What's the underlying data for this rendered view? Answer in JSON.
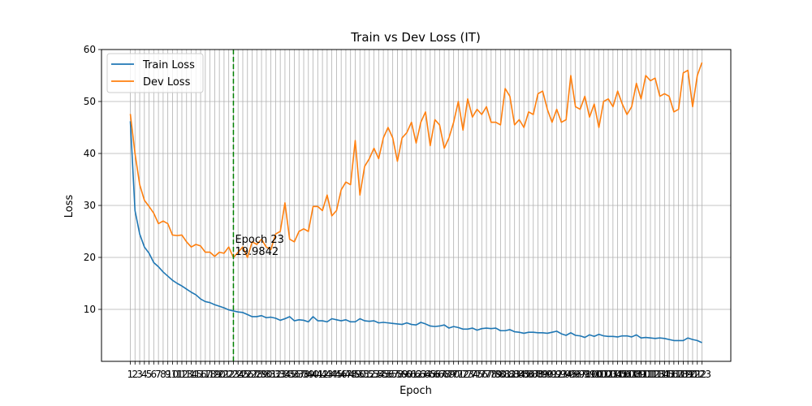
{
  "chart_data": {
    "type": "line",
    "title": "Train vs Dev Loss (IT)",
    "xlabel": "Epoch",
    "ylabel": "Loss",
    "xlim": [
      1,
      123
    ],
    "ylim": [
      0,
      60
    ],
    "y_ticks": [
      10,
      20,
      30,
      40,
      50,
      60
    ],
    "grid": true,
    "legend_position": "top-left",
    "annotation": {
      "line1": "Epoch 23",
      "line2": "19.9842",
      "x": 23,
      "y": 19.9842,
      "color": "#008000"
    },
    "series": [
      {
        "name": "Train Loss",
        "color": "#1f77b4",
        "values": [
          46.2,
          29.0,
          24.5,
          22.0,
          20.8,
          19.0,
          18.2,
          17.2,
          16.4,
          15.6,
          15.0,
          14.5,
          13.9,
          13.3,
          12.8,
          12.0,
          11.5,
          11.3,
          10.9,
          10.6,
          10.3,
          9.9,
          9.7,
          9.5,
          9.4,
          9.0,
          8.6,
          8.6,
          8.8,
          8.4,
          8.5,
          8.3,
          7.9,
          8.2,
          8.6,
          7.8,
          8.0,
          7.9,
          7.6,
          8.6,
          7.8,
          7.8,
          7.6,
          8.2,
          8.0,
          7.8,
          8.0,
          7.6,
          7.6,
          8.2,
          7.8,
          7.7,
          7.8,
          7.4,
          7.5,
          7.4,
          7.3,
          7.2,
          7.1,
          7.4,
          7.1,
          7.0,
          7.5,
          7.2,
          6.8,
          6.7,
          6.8,
          7.0,
          6.4,
          6.7,
          6.5,
          6.2,
          6.2,
          6.4,
          6.0,
          6.3,
          6.4,
          6.3,
          6.4,
          5.9,
          5.9,
          6.1,
          5.7,
          5.6,
          5.4,
          5.6,
          5.6,
          5.5,
          5.5,
          5.4,
          5.6,
          5.8,
          5.3,
          5.0,
          5.5,
          5.0,
          4.9,
          4.6,
          5.1,
          4.8,
          5.2,
          4.9,
          4.8,
          4.8,
          4.7,
          4.9,
          4.9,
          4.7,
          5.1,
          4.5,
          4.6,
          4.5,
          4.4,
          4.5,
          4.4,
          4.2,
          4.0,
          4.0,
          4.0,
          4.5,
          4.2,
          4.0,
          3.6
        ]
      },
      {
        "name": "Dev Loss",
        "color": "#ff7f0e",
        "values": [
          47.6,
          40.0,
          34.0,
          31.0,
          29.8,
          28.5,
          26.5,
          27.0,
          26.5,
          24.3,
          24.2,
          24.3,
          23.0,
          22.0,
          22.5,
          22.2,
          21.0,
          21.0,
          20.2,
          21.0,
          20.8,
          22.0,
          19.9842,
          21.0,
          22.0,
          20.0,
          23.0,
          22.5,
          23.5,
          22.0,
          21.5,
          24.5,
          25.0,
          30.5,
          23.5,
          23.0,
          25.0,
          25.5,
          25.0,
          29.8,
          29.8,
          29.0,
          32.0,
          28.0,
          29.0,
          33.0,
          34.5,
          34.0,
          42.5,
          32.0,
          37.5,
          39.0,
          41.0,
          39.0,
          43.0,
          45.0,
          43.0,
          38.5,
          43.0,
          44.0,
          46.0,
          42.0,
          46.0,
          48.0,
          41.5,
          46.5,
          45.5,
          41.0,
          43.0,
          46.0,
          50.0,
          44.5,
          50.5,
          47.0,
          48.5,
          47.5,
          49.0,
          46.0,
          46.0,
          45.5,
          52.5,
          51.0,
          45.5,
          46.5,
          45.0,
          48.0,
          47.5,
          51.5,
          52.0,
          48.5,
          46.0,
          48.5,
          46.0,
          46.5,
          55.0,
          49.0,
          48.5,
          51.0,
          47.0,
          49.5,
          45.0,
          50.0,
          50.5,
          49.0,
          52.0,
          49.5,
          47.5,
          49.0,
          53.5,
          50.5,
          55.0,
          54.0,
          54.5,
          51.0,
          51.5,
          51.0,
          48.0,
          48.5,
          55.5,
          56.0,
          49.0,
          55.0,
          57.5
        ]
      }
    ]
  }
}
